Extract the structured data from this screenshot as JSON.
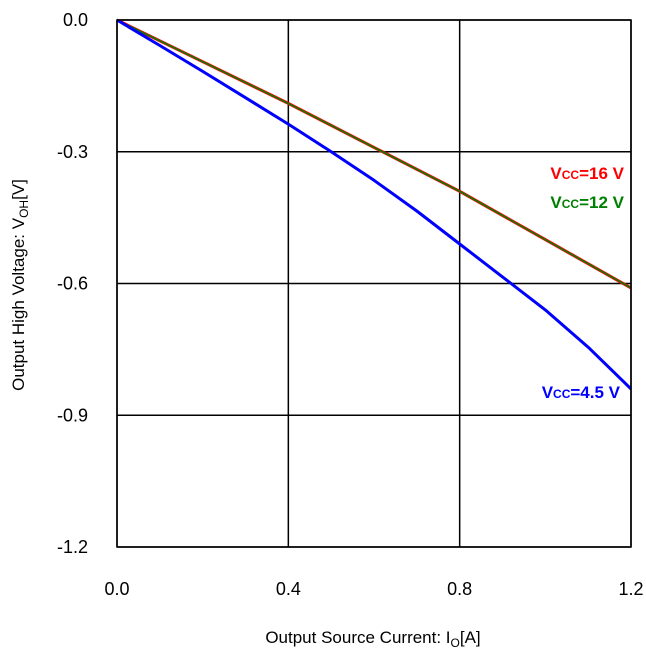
{
  "chart_data": {
    "type": "line",
    "xlabel": {
      "main": "Output Source Current: I",
      "sub": "O",
      "unit": "[A]"
    },
    "ylabel": {
      "main": "Output High Voltage: V",
      "sub": "OH",
      "unit": "[V]"
    },
    "xlim": [
      0,
      1.2
    ],
    "ylim": [
      -1.2,
      0
    ],
    "x_ticks": [
      0,
      0.4,
      0.8,
      1.2
    ],
    "x_tick_labels": [
      "0.0",
      "0.4",
      "0.8",
      "1.2"
    ],
    "y_ticks": [
      0,
      -0.3,
      -0.6,
      -0.9,
      -1.2
    ],
    "y_tick_labels": [
      "0.0",
      "-0.3",
      "-0.6",
      "-0.9",
      "-1.2"
    ],
    "grid": true,
    "series": [
      {
        "name": {
          "main": "V",
          "sub": "CC",
          "suffix": "=16 V"
        },
        "color": "#ff0000",
        "x": [
          0,
          0.2,
          0.4,
          0.6,
          0.8,
          1.0,
          1.2
        ],
        "y": [
          0,
          -0.095,
          -0.19,
          -0.29,
          -0.39,
          -0.5,
          -0.61
        ]
      },
      {
        "name": {
          "main": "V",
          "sub": "CC",
          "suffix": "=12 V"
        },
        "color": "#008000",
        "x": [
          0,
          0.2,
          0.4,
          0.6,
          0.8,
          1.0,
          1.2
        ],
        "y": [
          0,
          -0.095,
          -0.19,
          -0.29,
          -0.39,
          -0.5,
          -0.61
        ]
      },
      {
        "name": {
          "main": "V",
          "sub": "CC",
          "suffix": "=4.5 V"
        },
        "color": "#0000ff",
        "x": [
          0,
          0.1,
          0.2,
          0.3,
          0.4,
          0.5,
          0.6,
          0.7,
          0.8,
          0.9,
          1.0,
          1.1,
          1.2
        ],
        "y": [
          0,
          -0.058,
          -0.117,
          -0.177,
          -0.237,
          -0.3,
          -0.365,
          -0.435,
          -0.51,
          -0.585,
          -0.66,
          -0.745,
          -0.84
        ]
      }
    ]
  },
  "colors": {
    "axis": "#000000",
    "grid": "#000000",
    "series_16v": "#ff0000",
    "series_12v": "#008000",
    "series_4_5v": "#0000ff"
  }
}
